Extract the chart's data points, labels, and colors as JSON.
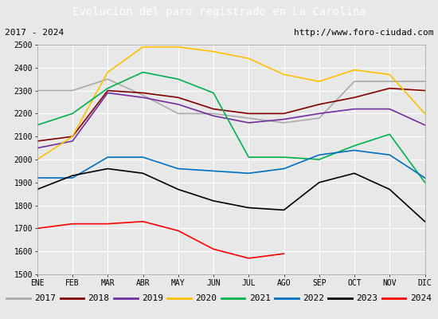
{
  "title": "Evolucion del paro registrado en La Carolina",
  "title_bg": "#4472c4",
  "subtitle_left": "2017 - 2024",
  "subtitle_right": "http://www.foro-ciudad.com",
  "xlabel_months": [
    "ENE",
    "FEB",
    "MAR",
    "ABR",
    "MAY",
    "JUN",
    "JUL",
    "AGO",
    "SEP",
    "OCT",
    "NOV",
    "DIC"
  ],
  "ylim": [
    1500,
    2500
  ],
  "yticks": [
    1500,
    1600,
    1700,
    1800,
    1900,
    2000,
    2100,
    2200,
    2300,
    2400,
    2500
  ],
  "series": {
    "2017": {
      "color": "#aaaaaa",
      "data": [
        2300,
        2300,
        2350,
        2280,
        2200,
        2200,
        2180,
        2160,
        2180,
        2340,
        2340,
        2340
      ]
    },
    "2018": {
      "color": "#800000",
      "data": [
        2080,
        2100,
        2300,
        2290,
        2270,
        2220,
        2200,
        2200,
        2240,
        2270,
        2310,
        2300
      ]
    },
    "2019": {
      "color": "#7030a0",
      "data": [
        2050,
        2080,
        2290,
        2270,
        2240,
        2190,
        2160,
        2175,
        2200,
        2220,
        2220,
        2150
      ]
    },
    "2020": {
      "color": "#ffc000",
      "data": [
        2000,
        2100,
        2380,
        2490,
        2490,
        2470,
        2440,
        2370,
        2340,
        2390,
        2370,
        2200
      ]
    },
    "2021": {
      "color": "#00b050",
      "data": [
        2150,
        2200,
        2310,
        2380,
        2350,
        2290,
        2010,
        2010,
        2000,
        2060,
        2110,
        1900
      ]
    },
    "2022": {
      "color": "#0070c0",
      "data": [
        1920,
        1920,
        2010,
        2010,
        1960,
        1950,
        1940,
        1960,
        2020,
        2040,
        2020,
        1920
      ]
    },
    "2023": {
      "color": "#000000",
      "data": [
        1870,
        1930,
        1960,
        1940,
        1870,
        1820,
        1790,
        1780,
        1900,
        1940,
        1870,
        1730
      ]
    },
    "2024": {
      "color": "#ff0000",
      "data": [
        1700,
        1720,
        1720,
        1730,
        1690,
        1610,
        1570,
        1590,
        null,
        null,
        null,
        null
      ]
    }
  },
  "legend_order": [
    "2017",
    "2018",
    "2019",
    "2020",
    "2021",
    "2022",
    "2023",
    "2024"
  ],
  "bg_color": "#e8e8e8",
  "plot_bg": "#e8e8e8",
  "grid_color": "#ffffff",
  "outer_bg": "#d8d8d8"
}
